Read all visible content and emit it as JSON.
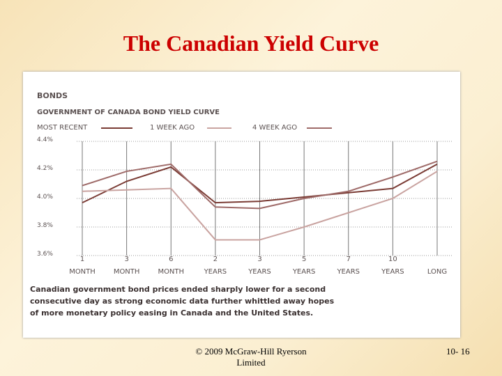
{
  "slide": {
    "title": "The Canadian Yield Curve",
    "footer": "© 2009 McGraw-Hill Ryerson Limited",
    "page_number": "10- 16"
  },
  "chart_data": {
    "type": "line",
    "kicker": "BONDS",
    "title": "GOVERNMENT OF CANADA BOND YIELD CURVE",
    "categories": [
      "1 MONTH",
      "3 MONTH",
      "6 MONTH",
      "2 YEARS",
      "3 YEARS",
      "5 YEARS",
      "7 YEARS",
      "10 YEARS",
      "LONG"
    ],
    "series": [
      {
        "name": "MOST RECENT",
        "color": "#7a3b34",
        "values": [
          3.97,
          4.12,
          4.22,
          3.97,
          3.98,
          4.01,
          4.04,
          4.07,
          4.24
        ]
      },
      {
        "name": "1 WEEK AGO",
        "color": "#c9a3a0",
        "values": [
          4.05,
          4.06,
          4.07,
          3.71,
          3.71,
          3.8,
          3.9,
          4.0,
          4.19
        ]
      },
      {
        "name": "4 WEEK AGO",
        "color": "#9e6a68",
        "values": [
          4.09,
          4.19,
          4.24,
          3.94,
          3.93,
          4.0,
          4.05,
          4.15,
          4.26
        ]
      }
    ],
    "ylim": [
      3.6,
      4.4
    ],
    "yticks": [
      {
        "value": 3.6,
        "label": "3.6%"
      },
      {
        "value": 3.8,
        "label": "3.8%"
      },
      {
        "value": 4.0,
        "label": "4.0%"
      },
      {
        "value": 4.2,
        "label": "4.2%"
      },
      {
        "value": 4.4,
        "label": "4.4%"
      }
    ],
    "grid": true,
    "note": [
      "Canadian government bond prices ended sharply lower for a second",
      "consecutive day as strong economic data further whittled away hopes",
      "of more monetary policy easing in Canada and the United States."
    ]
  }
}
